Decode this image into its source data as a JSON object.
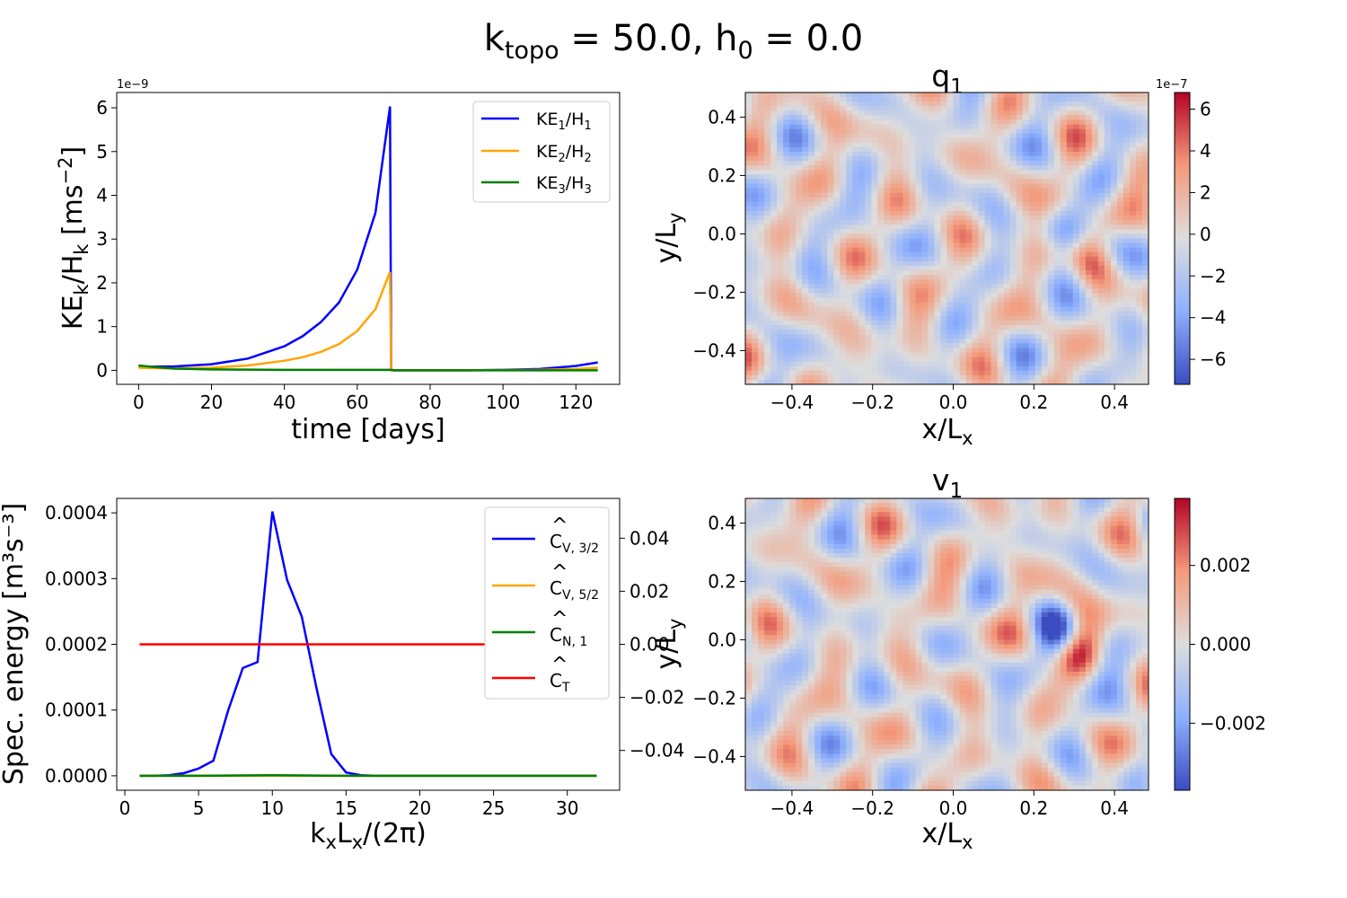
{
  "figure": {
    "title_main": "k",
    "title_k_sub": "topo",
    "title_mid": " = 50.0, h",
    "title_h_sub": "0",
    "title_end": " = 0.0"
  },
  "chart_data": [
    {
      "id": "ke",
      "type": "line",
      "xlabel": "time   [days]",
      "ylabel_main": "KE",
      "ylabel_sub1": "k",
      "ylabel_mid": "/H",
      "ylabel_sub2": "k",
      "ylabel_unit": "   [ms",
      "ylabel_sup": "−2",
      "ylabel_close": "]",
      "offset_text": "1e−9",
      "xlim": [
        -6,
        132
      ],
      "ylim": [
        -0.32,
        6.35
      ],
      "xticks": [
        0,
        20,
        40,
        60,
        80,
        100,
        120
      ],
      "yticks": [
        0,
        1,
        2,
        3,
        4,
        5,
        6
      ],
      "legend_position": "top-right",
      "series": [
        {
          "name": "KE1/H1",
          "label_main": "KE",
          "label_sub1": "1",
          "label_mid": "/H",
          "label_sub2": "1",
          "color": "#0000ff",
          "x": [
            0,
            10,
            20,
            30,
            40,
            45,
            50,
            55,
            60,
            65,
            69,
            69.3,
            70,
            80,
            90,
            100,
            110,
            120,
            126
          ],
          "y": [
            0.08,
            0.09,
            0.14,
            0.27,
            0.55,
            0.78,
            1.1,
            1.55,
            2.3,
            3.6,
            6.03,
            0.02,
            0.0,
            0.0,
            0.0,
            0.01,
            0.03,
            0.1,
            0.18
          ]
        },
        {
          "name": "KE2/H2",
          "label_main": "KE",
          "label_sub1": "2",
          "label_mid": "/H",
          "label_sub2": "2",
          "color": "#ffa500",
          "x": [
            0,
            10,
            20,
            30,
            40,
            45,
            50,
            55,
            60,
            65,
            69,
            69.3,
            70,
            90,
            110,
            120,
            126
          ],
          "y": [
            0.06,
            0.04,
            0.06,
            0.11,
            0.22,
            0.3,
            0.42,
            0.6,
            0.9,
            1.4,
            2.25,
            0.0,
            0.0,
            0.0,
            0.01,
            0.03,
            0.06
          ]
        },
        {
          "name": "KE3/H3",
          "label_main": "KE",
          "label_sub1": "3",
          "label_mid": "/H",
          "label_sub2": "3",
          "color": "#008000",
          "x": [
            0,
            5,
            10,
            20,
            40,
            60,
            69,
            70,
            100,
            126
          ],
          "y": [
            0.11,
            0.07,
            0.04,
            0.02,
            0.01,
            0.01,
            0.01,
            0.0,
            0.0,
            0.0
          ]
        }
      ]
    },
    {
      "id": "spec",
      "type": "line",
      "xlabel": "kxLx/(2π)",
      "ylabel": "Spec.  energy   [m³s⁻³]",
      "xlim": [
        -0.55,
        33.55
      ],
      "ylim": [
        -2.2e-05,
        0.000422
      ],
      "xticks": [
        0,
        5,
        10,
        15,
        20,
        25,
        30
      ],
      "yticks": [
        "0.0000",
        "0.0001",
        "0.0002",
        "0.0003",
        "0.0004"
      ],
      "ytick_values": [
        0,
        0.0001,
        0.0002,
        0.0003,
        0.0004
      ],
      "right_ylim": [
        -0.055,
        0.055
      ],
      "right_yticks": [
        "0.04",
        "0.02",
        "0.00",
        "−0.02",
        "−0.04"
      ],
      "right_ytick_values": [
        0.04,
        0.02,
        0.0,
        -0.02,
        -0.04
      ],
      "legend_position": "top-right",
      "series": [
        {
          "name": "ĈV,3/2",
          "label_main": "C",
          "label_sub": "V, 3/2",
          "color": "#0000ff",
          "x": [
            1,
            2,
            3,
            4,
            5,
            6,
            7,
            8,
            9,
            10,
            11,
            12,
            13,
            14,
            15,
            16,
            17,
            18,
            20,
            22,
            24,
            26,
            28,
            30,
            32
          ],
          "y": [
            0,
            0,
            1e-06,
            4e-06,
            1.1e-05,
            2.3e-05,
            9.9e-05,
            0.000164,
            0.000173,
            0.000402,
            0.000298,
            0.000242,
            0.000133,
            3.3e-05,
            5e-06,
            1e-06,
            0,
            0,
            0,
            0,
            0,
            0,
            0,
            0,
            0
          ]
        },
        {
          "name": "ĈV,5/2",
          "label_main": "C",
          "label_sub": "V, 5/2",
          "color": "#ffa500",
          "x": [
            1,
            32
          ],
          "y": [
            0,
            0
          ]
        },
        {
          "name": "ĈN,1",
          "label_main": "C",
          "label_sub": "N, 1",
          "color": "#008000",
          "x": [
            1,
            5,
            10,
            15,
            20,
            32
          ],
          "y": [
            0,
            0,
            1e-06,
            0,
            0,
            0
          ]
        },
        {
          "name": "ĈT",
          "label_main": "C",
          "label_sub": "T",
          "color": "#ff0000",
          "axis": "right",
          "x": [
            1,
            32
          ],
          "y": [
            0,
            0
          ]
        }
      ],
      "overlap_label": "y/Ly"
    },
    {
      "id": "q1",
      "type": "heatmap",
      "title_main": "q",
      "title_sub": "1",
      "xlabel_main": "x/L",
      "xlabel_sub": "x",
      "ylabel_main": "y/L",
      "ylabel_sub": "y",
      "xlim": [
        -0.5156,
        0.4844
      ],
      "ylim": [
        -0.5156,
        0.4844
      ],
      "xticks": [
        "−0.4",
        "−0.2",
        "0.0",
        "0.2",
        "0.4"
      ],
      "xtick_values": [
        -0.4,
        -0.2,
        0.0,
        0.2,
        0.4
      ],
      "yticks": [
        "0.4",
        "0.2",
        "0.0",
        "−0.2",
        "−0.4"
      ],
      "ytick_values": [
        0.4,
        0.2,
        0.0,
        -0.2,
        -0.4
      ],
      "colormap": "coolwarm",
      "colorbar_range": [
        -7.2,
        6.8
      ],
      "colorbar_ticks": [
        "6",
        "4",
        "2",
        "0",
        "−2",
        "−4",
        "−6"
      ],
      "colorbar_tick_values": [
        6,
        4,
        2,
        0,
        -2,
        -4,
        -6
      ],
      "colorbar_offset": "1e−7",
      "grid_size": 64
    },
    {
      "id": "v1",
      "type": "heatmap",
      "title_main": "v",
      "title_sub": "1",
      "xlabel_main": "x/L",
      "xlabel_sub": "x",
      "ylabel_main": "y/L",
      "ylabel_sub": "y",
      "xlim": [
        -0.5156,
        0.4844
      ],
      "ylim": [
        -0.5156,
        0.4844
      ],
      "xticks": [
        "−0.4",
        "−0.2",
        "0.0",
        "0.2",
        "0.4"
      ],
      "xtick_values": [
        -0.4,
        -0.2,
        0.0,
        0.2,
        0.4
      ],
      "yticks": [
        "0.4",
        "0.2",
        "0.0",
        "−0.2",
        "−0.4"
      ],
      "ytick_values": [
        0.4,
        0.2,
        0.0,
        -0.2,
        -0.4
      ],
      "colormap": "coolwarm",
      "colorbar_range": [
        -0.0037,
        0.0037
      ],
      "colorbar_ticks": [
        "0.002",
        "0.000",
        "−0.002"
      ],
      "colorbar_tick_values": [
        0.002,
        0.0,
        -0.002
      ],
      "grid_size": 64
    }
  ]
}
